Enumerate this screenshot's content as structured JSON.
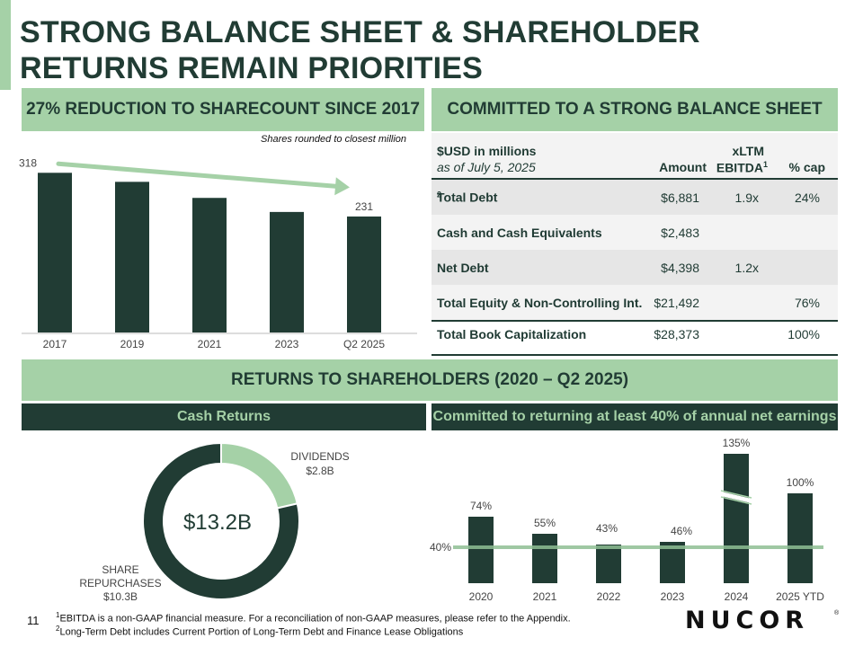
{
  "title": {
    "line1": "STRONG BALANCE SHEET & SHAREHOLDER",
    "line2": "RETURNS REMAIN PRIORITIES"
  },
  "left_banner": "27% REDUCTION TO SHARECOUNT SINCE 2017",
  "right_banner": "COMMITTED TO A STRONG BALANCE SHEET",
  "bottom_banner": "RETURNS TO SHAREHOLDERS (2020 – Q2 2025)",
  "cash_returns_banner": "Cash Returns",
  "committed_banner": "Committed to returning at least 40% of annual net earnings",
  "shares_note": "Shares rounded to closest million",
  "table": {
    "header": {
      "line1": "$USD in millions",
      "line2": "as of July 5, 2025",
      "amount": "Amount",
      "xltm": "xLTM",
      "ebitda": "EBITDA",
      "ebitda_sup": "1",
      "cap": "% cap"
    },
    "rows": [
      {
        "label": "Total Debt",
        "sup": "2",
        "amount": "$6,881",
        "ebitda": "1.9x",
        "cap": "24%"
      },
      {
        "label": "Cash and Cash Equivalents",
        "sup": "",
        "amount": "$2,483",
        "ebitda": "",
        "cap": ""
      },
      {
        "label": "Net Debt",
        "sup": "",
        "amount": "$4,398",
        "ebitda": "1.2x",
        "cap": ""
      },
      {
        "label": "Total Equity & Non-Controlling Int.",
        "sup": "",
        "amount": "$21,492",
        "ebitda": "",
        "cap": "76%"
      },
      {
        "label": "Total Book Capitalization",
        "sup": "",
        "amount": "$28,373",
        "ebitda": "",
        "cap": "100%"
      }
    ]
  },
  "chart_data": [
    {
      "type": "bar",
      "categories": [
        "2017",
        "2019",
        "2021",
        "2023",
        "Q2 2025"
      ],
      "values": [
        318,
        300,
        268,
        240,
        231
      ],
      "data_labels": [
        "318",
        "",
        "",
        "",
        "231"
      ],
      "ylim": [
        0,
        340
      ],
      "note": "Shares rounded to closest million",
      "grid": false,
      "trend_arrow": {
        "from": "2017",
        "to": "Q2 2025"
      }
    },
    {
      "type": "pie",
      "center_label": "$13.2B",
      "slices": [
        {
          "name": "DIVIDENDS",
          "label": "$2.8B",
          "value": 2.8,
          "color": "#a5d1a7"
        },
        {
          "name": "SHARE REPURCHASES",
          "label": "$10.3B",
          "value": 10.3,
          "color": "#213c34"
        }
      ]
    },
    {
      "type": "bar",
      "categories": [
        "2020",
        "2021",
        "2022",
        "2023",
        "2024",
        "2025 YTD"
      ],
      "values": [
        74,
        55,
        43,
        46,
        135,
        100
      ],
      "data_labels": [
        "74%",
        "55%",
        "43%",
        "46%",
        "135%",
        "100%"
      ],
      "reference_line": {
        "value": 40,
        "label": "40%",
        "color": "#8fbf94"
      },
      "axis_break_on": "2024",
      "grid": false
    }
  ],
  "footnotes": {
    "f1_sup": "1",
    "f1": "EBITDA is a non-GAAP financial measure. For a reconciliation of non-GAAP measures, please refer to the Appendix.",
    "f2_sup": "2",
    "f2": "Long-Term Debt includes Current Portion of Long-Term Debt and Finance Lease Obligations"
  },
  "page_number": "11",
  "logo_text": "NUCOR",
  "colors": {
    "dark": "#213c34",
    "light": "#a5d1a7",
    "reference": "#8fbf94"
  }
}
